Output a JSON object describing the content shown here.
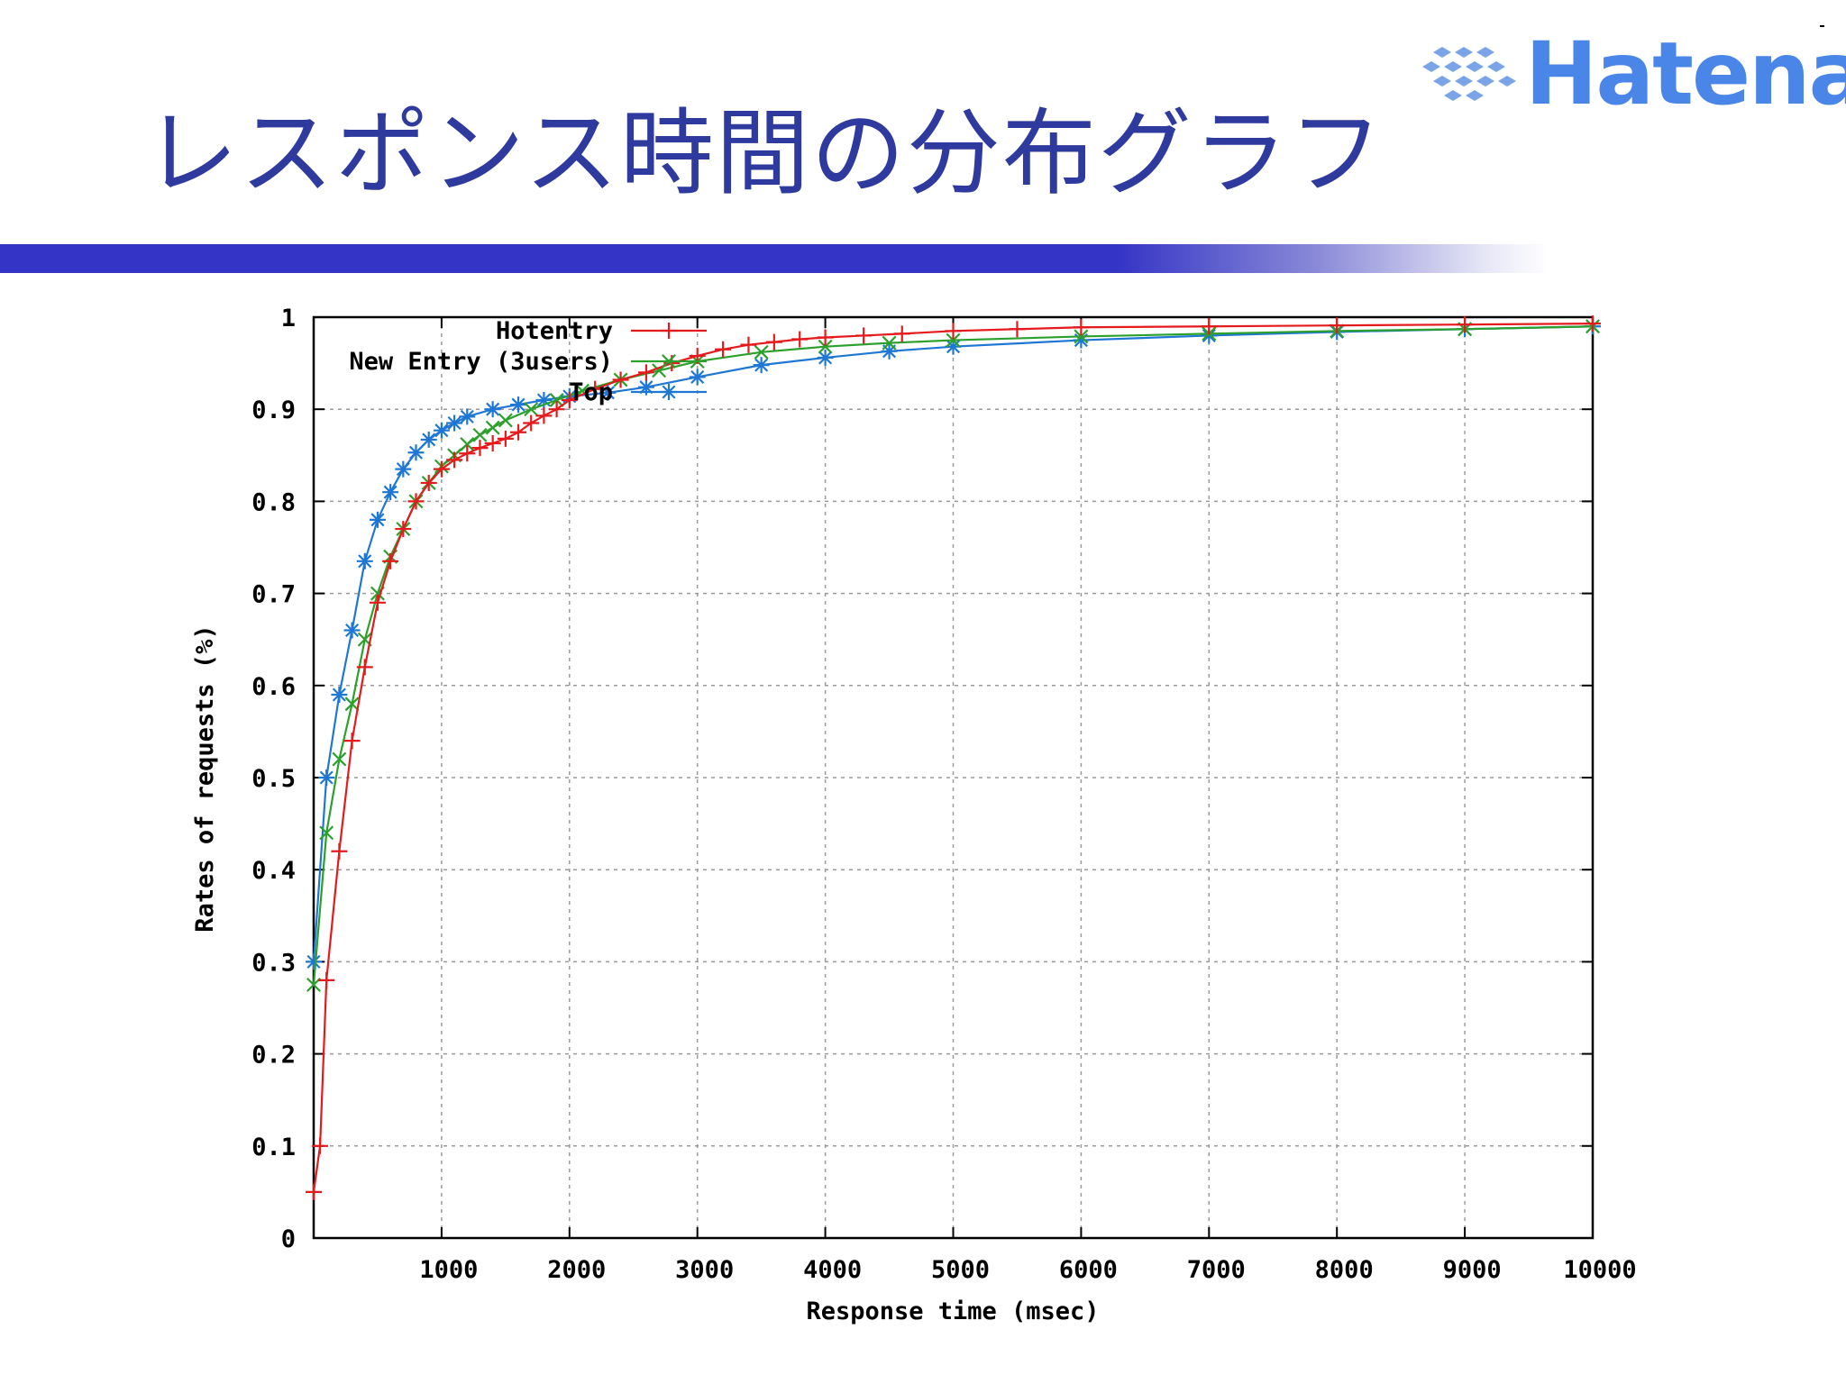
{
  "slide": {
    "title": "レスポンス時間の分布グラフ",
    "logo_text": "Hatena",
    "logo_icon": "hatena-diamond-icon",
    "title_color": "#2f3a9e",
    "rule_color": "#3434c6",
    "logo_color": "#4a86e8"
  },
  "chart_data": {
    "type": "line",
    "title": "",
    "xlabel": "Response time (msec)",
    "ylabel": "Rates of requests (%)",
    "xlim": [
      0,
      10000
    ],
    "ylim": [
      0,
      1
    ],
    "xticks": [
      "1000",
      "2000",
      "3000",
      "4000",
      "5000",
      "6000",
      "7000",
      "8000",
      "9000",
      "10000"
    ],
    "yticks": [
      "0",
      "0.1",
      "0.2",
      "0.3",
      "0.4",
      "0.5",
      "0.6",
      "0.7",
      "0.8",
      "0.9",
      "1"
    ],
    "grid": true,
    "legend_position": "top-left",
    "series": [
      {
        "name": "Hotentry",
        "color": "#e41a1c",
        "marker": "plus",
        "x": [
          0,
          50,
          100,
          200,
          300,
          400,
          500,
          600,
          700,
          800,
          900,
          1000,
          1100,
          1200,
          1300,
          1400,
          1500,
          1600,
          1700,
          1800,
          1900,
          2000,
          2200,
          2400,
          2600,
          2800,
          3000,
          3200,
          3400,
          3600,
          3800,
          4000,
          4300,
          4600,
          5000,
          5500,
          6000,
          7000,
          8000,
          9000,
          10000
        ],
        "y": [
          0.05,
          0.1,
          0.28,
          0.42,
          0.54,
          0.62,
          0.69,
          0.735,
          0.77,
          0.8,
          0.82,
          0.835,
          0.845,
          0.852,
          0.858,
          0.863,
          0.868,
          0.875,
          0.885,
          0.893,
          0.9,
          0.91,
          0.922,
          0.932,
          0.94,
          0.95,
          0.958,
          0.965,
          0.97,
          0.973,
          0.976,
          0.978,
          0.98,
          0.982,
          0.985,
          0.987,
          0.989,
          0.99,
          0.991,
          0.992,
          0.993
        ]
      },
      {
        "name": "New Entry (3users)",
        "color": "#2ca02c",
        "marker": "cross",
        "x": [
          0,
          100,
          200,
          300,
          400,
          500,
          600,
          700,
          800,
          900,
          1000,
          1100,
          1200,
          1300,
          1400,
          1500,
          1700,
          1900,
          2100,
          2400,
          2700,
          3000,
          3500,
          4000,
          4500,
          5000,
          6000,
          7000,
          8000,
          9000,
          10000
        ],
        "y": [
          0.275,
          0.44,
          0.52,
          0.58,
          0.65,
          0.7,
          0.74,
          0.77,
          0.8,
          0.82,
          0.838,
          0.85,
          0.862,
          0.872,
          0.88,
          0.888,
          0.9,
          0.91,
          0.92,
          0.932,
          0.942,
          0.952,
          0.962,
          0.968,
          0.972,
          0.975,
          0.979,
          0.982,
          0.985,
          0.987,
          0.99
        ]
      },
      {
        "name": "Top",
        "color": "#1f77d4",
        "marker": "star",
        "x": [
          0,
          100,
          200,
          300,
          400,
          500,
          600,
          700,
          800,
          900,
          1000,
          1100,
          1200,
          1400,
          1600,
          1800,
          2000,
          2300,
          2600,
          3000,
          3500,
          4000,
          4500,
          5000,
          6000,
          7000,
          8000,
          9000,
          10000
        ],
        "y": [
          0.3,
          0.5,
          0.59,
          0.66,
          0.735,
          0.78,
          0.81,
          0.835,
          0.853,
          0.867,
          0.877,
          0.885,
          0.892,
          0.9,
          0.905,
          0.91,
          0.914,
          0.918,
          0.924,
          0.935,
          0.948,
          0.956,
          0.963,
          0.968,
          0.975,
          0.98,
          0.984,
          0.987,
          0.99
        ]
      }
    ]
  }
}
